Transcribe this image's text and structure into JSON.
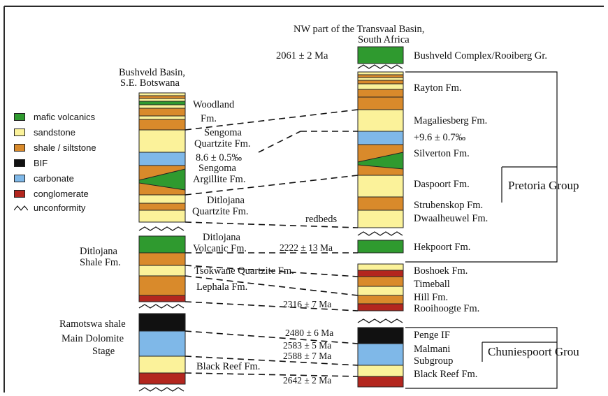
{
  "colors": {
    "mafic_volcanics": "#2f9a2f",
    "sandstone": "#fbf29a",
    "shale_siltstone": "#d98a2b",
    "bif": "#111111",
    "carbonate": "#7fb8e8",
    "conglomerate": "#b3261e",
    "frame": "#2a2a2a"
  },
  "legend": {
    "items": [
      {
        "label": "mafic volcanics",
        "key": "mafic_volcanics"
      },
      {
        "label": "sandstone",
        "key": "sandstone"
      },
      {
        "label": "shale / siltstone",
        "key": "shale_siltstone"
      },
      {
        "label": "BIF",
        "key": "bif"
      },
      {
        "label": "carbonate",
        "key": "carbonate"
      },
      {
        "label": "conglomerate",
        "key": "conglomerate"
      },
      {
        "label": "unconformity",
        "key": "unconformity",
        "icon": "wavy-line-icon"
      }
    ]
  },
  "left_column": {
    "title_line1": "Bushveld Basin,",
    "title_line2": "S.E. Botswana",
    "labels": {
      "woodland_1": "Woodland",
      "woodland_2": "Fm.",
      "sengoma_q_1": "Sengoma",
      "sengoma_q_2": "Quartzite Fm.",
      "isotope": "8.6 ± 0.5‰",
      "sengoma_a_1": "Sengoma",
      "sengoma_a_2": "Argillite Fm.",
      "ditlojana_q_1": "Ditlojana",
      "ditlojana_q_2": "Quartzite Fm.",
      "ditlojana_v_1": "Ditlojana",
      "ditlojana_v_2": "Volcanic Fm.",
      "ditlojana_shale_1": "Ditlojana",
      "ditlojana_shale_2": "Shale Fm.",
      "tsokwane": "Tsokwane Quartzite Fm.",
      "lephala": "Lephala Fm.",
      "ramotswa": "Ramotswa shale",
      "main_dolomite_1": "Main Dolomite",
      "main_dolomite_2": "Stage",
      "black_reef": "Black Reef Fm."
    }
  },
  "right_column": {
    "title_line1": "NW part of the Transvaal Basin,",
    "title_line2": "South Africa",
    "ages": {
      "bushveld": "2061 ± 2 Ma",
      "hekpoort": "2222 ± 13 Ma",
      "rooihoogte": "2316 ± 7 Ma",
      "penge": "2480 ± 6 Ma",
      "malmani_1": "2583 ± 5 Ma",
      "malmani_2": "2588 ± 7 Ma",
      "black_reef": "2642 ± 2 Ma"
    },
    "middle_label": "redbeds",
    "formations": {
      "bushveld": "Bushveld Complex/Rooiberg Gr.",
      "rayton": "Rayton Fm.",
      "magaliesberg": "Magaliesberg Fm.",
      "isotope": "+9.6 ± 0.7‰",
      "silverton": "Silverton Fm.",
      "daspoort": "Daspoort Fm.",
      "strubenskop": "Strubenskop Fm.",
      "dwaalheuwel": "Dwaalheuwel Fm.",
      "hekpoort": "Hekpoort Fm.",
      "boshoek": "Boshoek Fm.",
      "timeball_1": "Timeball",
      "timeball_2": "Hill Fm.",
      "rooihoogte": "Rooihoogte Fm.",
      "penge": "Penge IF",
      "malmani_1": "Malmani",
      "malmani_2": "Subgroup",
      "black_reef": "Black Reef Fm."
    },
    "groups": {
      "pretoria": "Pretoria Group",
      "chuniespoort": "Chuniespoort Grou"
    }
  }
}
